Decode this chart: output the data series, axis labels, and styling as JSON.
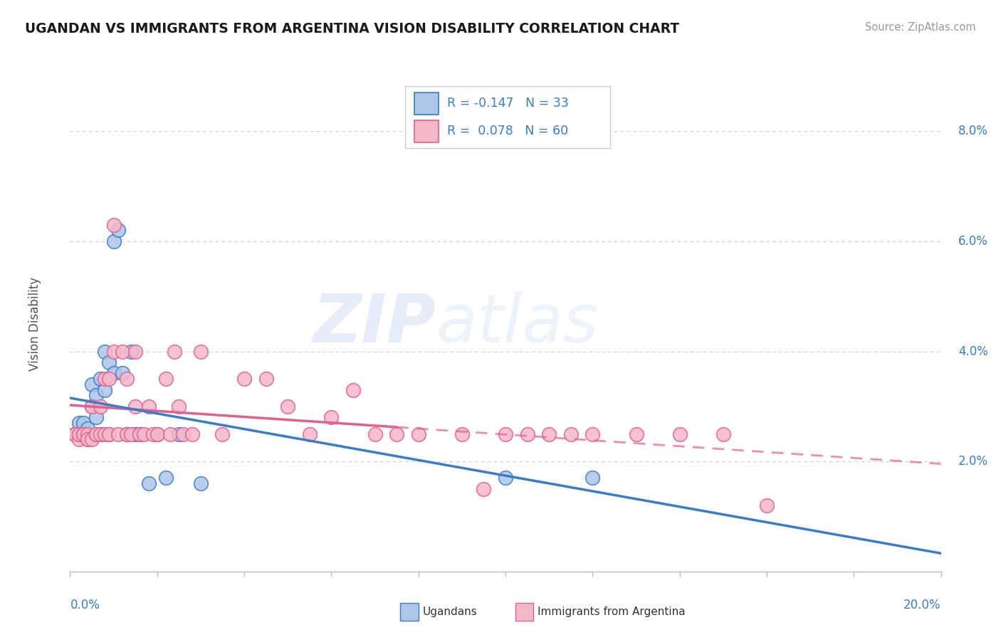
{
  "title": "UGANDAN VS IMMIGRANTS FROM ARGENTINA VISION DISABILITY CORRELATION CHART",
  "source": "Source: ZipAtlas.com",
  "ylabel": "Vision Disability",
  "right_yticks": [
    "8.0%",
    "6.0%",
    "4.0%",
    "2.0%"
  ],
  "right_ytick_vals": [
    0.08,
    0.06,
    0.04,
    0.02
  ],
  "watermark_zip": "ZIP",
  "watermark_atlas": "atlas",
  "ugandan_color": "#aec6e8",
  "argentina_color": "#f5b8c8",
  "ugandan_line_color": "#3a7cc7",
  "argentina_line_color": "#e06090",
  "ugandan_scatter": [
    [
      0.001,
      0.025
    ],
    [
      0.002,
      0.025
    ],
    [
      0.002,
      0.027
    ],
    [
      0.003,
      0.025
    ],
    [
      0.003,
      0.025
    ],
    [
      0.003,
      0.027
    ],
    [
      0.004,
      0.026
    ],
    [
      0.004,
      0.024
    ],
    [
      0.005,
      0.03
    ],
    [
      0.005,
      0.034
    ],
    [
      0.006,
      0.032
    ],
    [
      0.006,
      0.028
    ],
    [
      0.007,
      0.025
    ],
    [
      0.007,
      0.035
    ],
    [
      0.008,
      0.033
    ],
    [
      0.008,
      0.04
    ],
    [
      0.009,
      0.038
    ],
    [
      0.009,
      0.025
    ],
    [
      0.01,
      0.036
    ],
    [
      0.01,
      0.06
    ],
    [
      0.011,
      0.062
    ],
    [
      0.012,
      0.036
    ],
    [
      0.013,
      0.025
    ],
    [
      0.014,
      0.04
    ],
    [
      0.015,
      0.025
    ],
    [
      0.016,
      0.025
    ],
    [
      0.018,
      0.016
    ],
    [
      0.02,
      0.025
    ],
    [
      0.022,
      0.017
    ],
    [
      0.025,
      0.025
    ],
    [
      0.03,
      0.016
    ],
    [
      0.1,
      0.017
    ],
    [
      0.12,
      0.017
    ]
  ],
  "argentina_scatter": [
    [
      0.001,
      0.025
    ],
    [
      0.001,
      0.025
    ],
    [
      0.002,
      0.024
    ],
    [
      0.002,
      0.025
    ],
    [
      0.003,
      0.025
    ],
    [
      0.003,
      0.025
    ],
    [
      0.004,
      0.025
    ],
    [
      0.004,
      0.024
    ],
    [
      0.005,
      0.024
    ],
    [
      0.005,
      0.03
    ],
    [
      0.006,
      0.025
    ],
    [
      0.006,
      0.025
    ],
    [
      0.007,
      0.025
    ],
    [
      0.007,
      0.03
    ],
    [
      0.008,
      0.025
    ],
    [
      0.008,
      0.035
    ],
    [
      0.009,
      0.035
    ],
    [
      0.009,
      0.025
    ],
    [
      0.01,
      0.04
    ],
    [
      0.01,
      0.063
    ],
    [
      0.011,
      0.025
    ],
    [
      0.012,
      0.04
    ],
    [
      0.013,
      0.035
    ],
    [
      0.013,
      0.025
    ],
    [
      0.014,
      0.025
    ],
    [
      0.015,
      0.03
    ],
    [
      0.015,
      0.04
    ],
    [
      0.016,
      0.025
    ],
    [
      0.017,
      0.025
    ],
    [
      0.018,
      0.03
    ],
    [
      0.019,
      0.025
    ],
    [
      0.02,
      0.025
    ],
    [
      0.022,
      0.035
    ],
    [
      0.023,
      0.025
    ],
    [
      0.024,
      0.04
    ],
    [
      0.025,
      0.03
    ],
    [
      0.026,
      0.025
    ],
    [
      0.028,
      0.025
    ],
    [
      0.03,
      0.04
    ],
    [
      0.035,
      0.025
    ],
    [
      0.04,
      0.035
    ],
    [
      0.045,
      0.035
    ],
    [
      0.05,
      0.03
    ],
    [
      0.055,
      0.025
    ],
    [
      0.06,
      0.028
    ],
    [
      0.065,
      0.033
    ],
    [
      0.07,
      0.025
    ],
    [
      0.075,
      0.025
    ],
    [
      0.08,
      0.025
    ],
    [
      0.09,
      0.025
    ],
    [
      0.095,
      0.015
    ],
    [
      0.1,
      0.025
    ],
    [
      0.105,
      0.025
    ],
    [
      0.11,
      0.025
    ],
    [
      0.115,
      0.025
    ],
    [
      0.12,
      0.025
    ],
    [
      0.13,
      0.025
    ],
    [
      0.14,
      0.025
    ],
    [
      0.15,
      0.025
    ],
    [
      0.16,
      0.012
    ]
  ],
  "xlim": [
    0.0,
    0.2
  ],
  "ylim": [
    0.0,
    0.09
  ],
  "bg_color": "#ffffff",
  "grid_color": "#cccccc"
}
